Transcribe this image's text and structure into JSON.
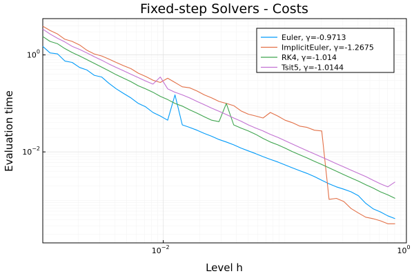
{
  "chart_data": {
    "type": "line",
    "title": "Fixed-step Solvers - Costs",
    "xlabel": "Level h",
    "ylabel": "Evaluation time",
    "xscale": "log",
    "yscale": "log",
    "xlim": [
      0.00102,
      1.0
    ],
    "ylim": [
      0.000133,
      5.6
    ],
    "xticks": [
      {
        "value": 0.01,
        "base": "10",
        "exp": "−2"
      },
      {
        "value": 1.0,
        "base": "10",
        "exp": "0"
      }
    ],
    "yticks": [
      {
        "value": 0.01,
        "base": "10",
        "exp": "−2"
      },
      {
        "value": 1.0,
        "base": "10",
        "exp": "0"
      }
    ],
    "grid": true,
    "legend_position": "top-right",
    "series": [
      {
        "name": "Euler, γ=-0.9713",
        "color": "#009af9",
        "x": [
          0.00102,
          0.00117,
          0.00135,
          0.00155,
          0.00178,
          0.00205,
          0.00235,
          0.0027,
          0.00311,
          0.00357,
          0.0041,
          0.00472,
          0.00542,
          0.00623,
          0.00715,
          0.00822,
          0.00945,
          0.01086,
          0.01248,
          0.01434,
          0.01647,
          0.01893,
          0.02176,
          0.025,
          0.02873,
          0.03301,
          0.03793,
          0.04359,
          0.05009,
          0.05756,
          0.06614,
          0.07601,
          0.08734,
          0.10037,
          0.11534,
          0.13253,
          0.15229,
          0.17499,
          0.20108,
          0.23107,
          0.26552,
          0.30511,
          0.35061,
          0.40288,
          0.46296,
          0.53198,
          0.61131,
          0.70245,
          0.80719
        ],
        "y": [
          1.5,
          1.1,
          1.05,
          0.75,
          0.7,
          0.55,
          0.49,
          0.38,
          0.35,
          0.26,
          0.2,
          0.16,
          0.13,
          0.1,
          0.085,
          0.065,
          0.055,
          0.045,
          0.15,
          0.036,
          0.032,
          0.028,
          0.024,
          0.021,
          0.018,
          0.016,
          0.014,
          0.012,
          0.0105,
          0.0092,
          0.008,
          0.007,
          0.0062,
          0.0054,
          0.0047,
          0.0041,
          0.0036,
          0.0031,
          0.0026,
          0.0022,
          0.0019,
          0.0017,
          0.0015,
          0.00125,
          0.00087,
          0.00067,
          0.00058,
          0.00048,
          0.00042
        ]
      },
      {
        "name": "ImplicitEuler, γ=-1.2675",
        "color": "#e26f46",
        "x": [
          0.00102,
          0.00117,
          0.00135,
          0.00155,
          0.00178,
          0.00205,
          0.00235,
          0.0027,
          0.00311,
          0.00357,
          0.0041,
          0.00472,
          0.00542,
          0.00623,
          0.00715,
          0.00822,
          0.00945,
          0.01086,
          0.01248,
          0.01434,
          0.01647,
          0.01893,
          0.02176,
          0.025,
          0.02873,
          0.03301,
          0.03793,
          0.04359,
          0.05009,
          0.05756,
          0.06614,
          0.07601,
          0.08734,
          0.10037,
          0.11534,
          0.13253,
          0.15229,
          0.17499,
          0.20108,
          0.23107,
          0.26552,
          0.30511,
          0.35061,
          0.40288,
          0.46296,
          0.53198,
          0.61131,
          0.70245,
          0.80719
        ],
        "y": [
          3.9,
          3.2,
          2.7,
          2.1,
          1.9,
          1.6,
          1.25,
          1.05,
          0.95,
          0.82,
          0.7,
          0.6,
          0.52,
          0.42,
          0.36,
          0.3,
          0.27,
          0.33,
          0.27,
          0.22,
          0.21,
          0.18,
          0.15,
          0.13,
          0.11,
          0.1,
          0.09,
          0.07,
          0.06,
          0.055,
          0.05,
          0.065,
          0.055,
          0.045,
          0.04,
          0.034,
          0.032,
          0.028,
          0.027,
          0.00105,
          0.0011,
          0.00095,
          0.00068,
          0.00055,
          0.00045,
          0.00042,
          0.00038,
          0.00033,
          0.00033
        ]
      },
      {
        "name": "RK4, γ=-1.014",
        "color": "#3ea44e",
        "x": [
          0.00102,
          0.00117,
          0.00135,
          0.00155,
          0.00178,
          0.00205,
          0.00235,
          0.0027,
          0.00311,
          0.00357,
          0.0041,
          0.00472,
          0.00542,
          0.00623,
          0.00715,
          0.00822,
          0.00945,
          0.01086,
          0.01248,
          0.01434,
          0.01647,
          0.01893,
          0.02176,
          0.025,
          0.02873,
          0.03301,
          0.03793,
          0.04359,
          0.05009,
          0.05756,
          0.06614,
          0.07601,
          0.08734,
          0.10037,
          0.11534,
          0.13253,
          0.15229,
          0.17499,
          0.20108,
          0.23107,
          0.26552,
          0.30511,
          0.35061,
          0.40288,
          0.46296,
          0.53198,
          0.61131,
          0.70245,
          0.80719
        ],
        "y": [
          2.4,
          1.9,
          1.7,
          1.35,
          1.12,
          0.95,
          0.8,
          0.67,
          0.56,
          0.47,
          0.39,
          0.33,
          0.28,
          0.23,
          0.2,
          0.17,
          0.14,
          0.12,
          0.1,
          0.088,
          0.074,
          0.063,
          0.053,
          0.045,
          0.042,
          0.1,
          0.036,
          0.031,
          0.027,
          0.023,
          0.019,
          0.016,
          0.014,
          0.012,
          0.0101,
          0.0087,
          0.0075,
          0.0064,
          0.0055,
          0.0047,
          0.004,
          0.0034,
          0.0029,
          0.0025,
          0.0021,
          0.0018,
          0.0015,
          0.0013,
          0.0011
        ]
      },
      {
        "name": "Tsit5, γ=-1.0144",
        "color": "#c271d2",
        "x": [
          0.00102,
          0.00117,
          0.00135,
          0.00155,
          0.00178,
          0.00205,
          0.00235,
          0.0027,
          0.00311,
          0.00357,
          0.0041,
          0.00472,
          0.00542,
          0.00623,
          0.00715,
          0.00822,
          0.00945,
          0.01086,
          0.01248,
          0.01434,
          0.01647,
          0.01893,
          0.02176,
          0.025,
          0.02873,
          0.03301,
          0.03793,
          0.04359,
          0.05009,
          0.05756,
          0.06614,
          0.07601,
          0.08734,
          0.10037,
          0.11534,
          0.13253,
          0.15229,
          0.17499,
          0.20108,
          0.23107,
          0.26552,
          0.30511,
          0.35061,
          0.40288,
          0.46296,
          0.53198,
          0.61131,
          0.70245,
          0.80719
        ],
        "y": [
          3.4,
          2.7,
          2.2,
          1.85,
          1.5,
          1.3,
          1.1,
          0.92,
          0.78,
          0.65,
          0.55,
          0.47,
          0.4,
          0.34,
          0.29,
          0.25,
          0.35,
          0.2,
          0.17,
          0.15,
          0.13,
          0.11,
          0.094,
          0.08,
          0.069,
          0.059,
          0.05,
          0.043,
          0.036,
          0.031,
          0.027,
          0.023,
          0.02,
          0.017,
          0.0145,
          0.0124,
          0.0106,
          0.0091,
          0.0078,
          0.0067,
          0.0057,
          0.0049,
          0.0042,
          0.0036,
          0.0031,
          0.0026,
          0.0022,
          0.0019,
          0.0024
        ]
      }
    ]
  }
}
